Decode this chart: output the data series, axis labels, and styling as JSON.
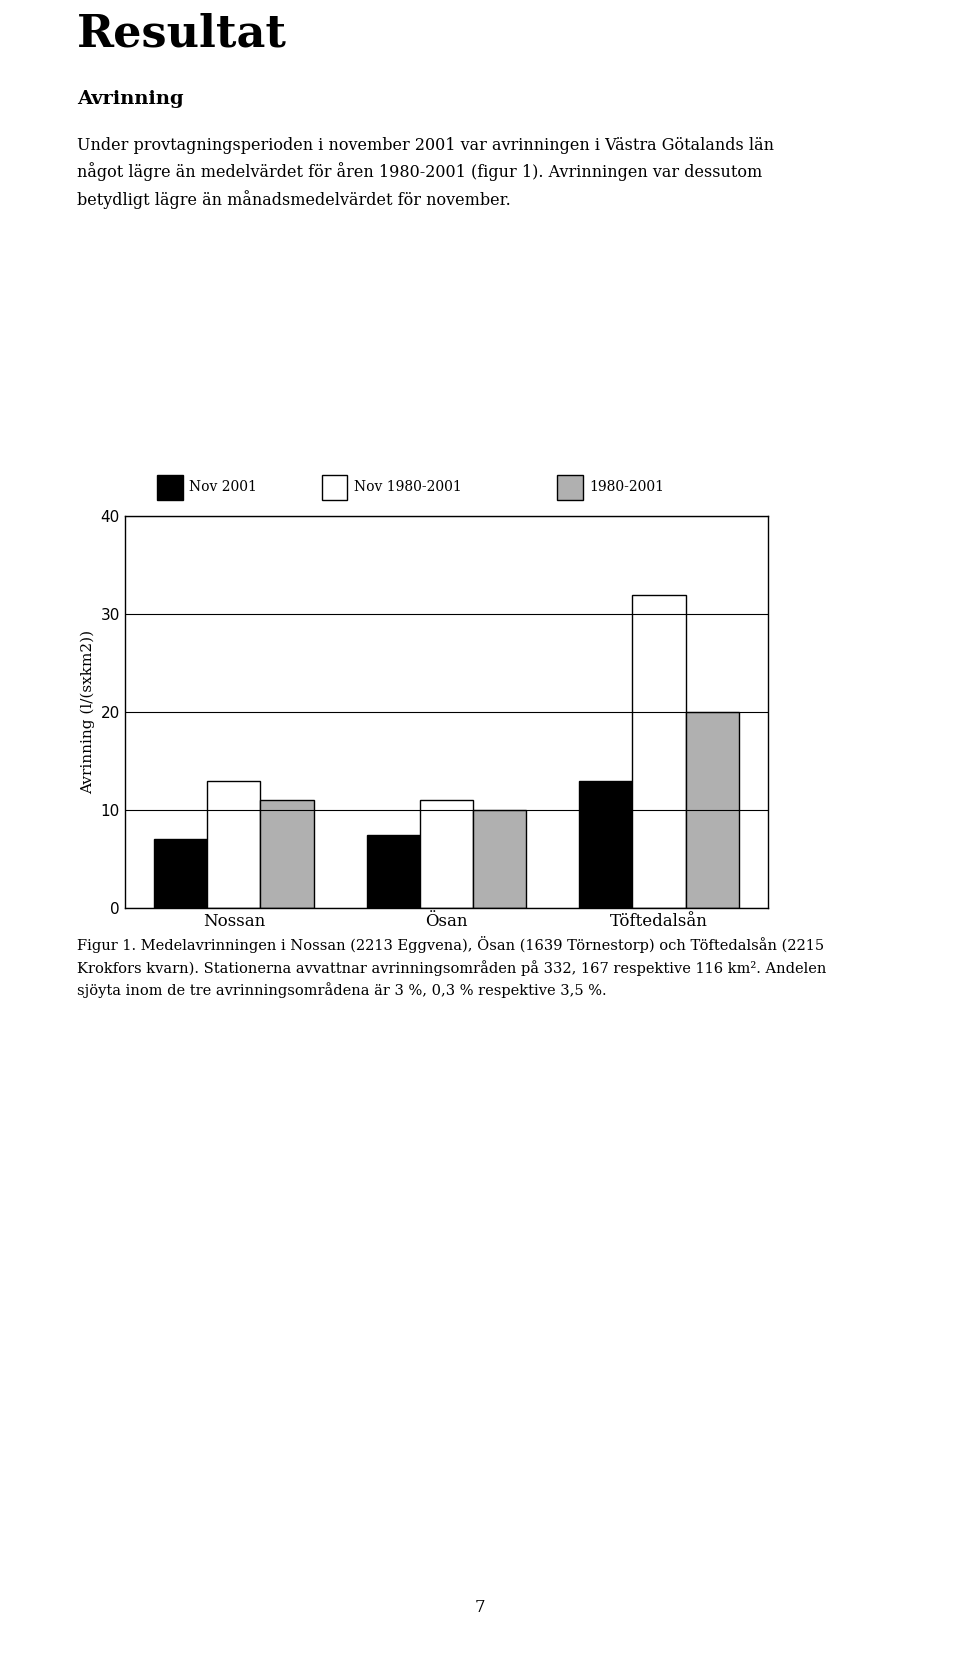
{
  "groups": [
    "Nossan",
    "Ösan",
    "Töftedalsån"
  ],
  "series": [
    {
      "label": "Nov 2001",
      "color": "#000000",
      "edgecolor": "#000000",
      "values": [
        7,
        7.5,
        13
      ]
    },
    {
      "label": "Nov 1980-2001",
      "color": "#ffffff",
      "edgecolor": "#000000",
      "values": [
        13,
        11,
        32
      ]
    },
    {
      "label": "1980-2001",
      "color": "#b0b0b0",
      "edgecolor": "#000000",
      "values": [
        11,
        10,
        20
      ]
    }
  ],
  "ylabel": "Avrinning (l/(sxkm2))",
  "ylim": [
    0,
    40
  ],
  "yticks": [
    0,
    10,
    20,
    30,
    40
  ],
  "bar_width": 0.25,
  "figsize": [
    9.6,
    16.66
  ],
  "dpi": 100,
  "title": "Resultat",
  "subtitle1": "Avrinning",
  "body_text1": "Under provtagningsperioden i november 2001 var avrinningen i Västra Götalands län\nnågot lägre än medelvärdet för åren 1980-2001 (figur 1). Avrinningen var dessutom\nbetydligt lägre än månadsmedelvärdet för november.",
  "caption": "Figur 1. Medelavrinningen i Nossan (2213 Eggvena), Ösan (1639 Törnestorp) och Töftedalsån (2215\nKrokfors kvarn). Stationerna avvattnar avrinningsområden på 332, 167 respektive 116 km². Andelen\nsjöyta inom de tre avrinningsområdena är 3 %, 0,3 % respektive 3,5 %.",
  "page_number": "7",
  "legend_labels": [
    "Nov 2001",
    "Nov 1980-2001",
    "1980-2001"
  ]
}
